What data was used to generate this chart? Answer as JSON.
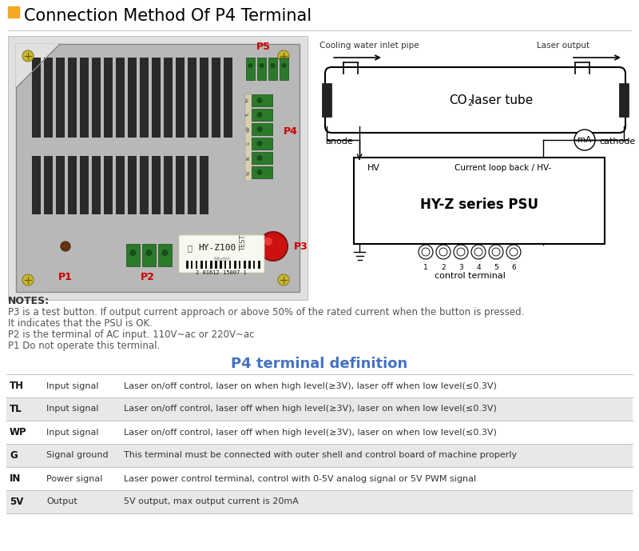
{
  "title": "Connection Method Of P4 Terminal",
  "title_square_color": "#F5A623",
  "title_color": "#000000",
  "title_fontsize": 15,
  "bg_color": "#ffffff",
  "notes_header": "NOTES:",
  "notes": [
    "P3 is a test button. If output current approach or above 50% of the rated current when the button is pressed.",
    "It indicates that the PSU is OK.",
    "P2 is the terminal of AC input. 110V~ac or 220V~ac",
    "P1 Do not operate this terminal."
  ],
  "notes_fontsize": 8.5,
  "table_title": "P4 terminal definition",
  "table_title_color": "#4472C4",
  "table_title_fontsize": 13,
  "table_rows": [
    {
      "pin": "TH",
      "type": "Input signal",
      "description": "Laser on/off control, laser on when high level(≥3V), laser off when low level(≤0.3V)",
      "highlighted": false
    },
    {
      "pin": "TL",
      "type": "Input signal",
      "description": "Laser on/off control, laser off when high level(≥3V), laser on when low level(≤0.3V)",
      "highlighted": true
    },
    {
      "pin": "WP",
      "type": "Input signal",
      "description": "Laser on/off control, laser off when high level(≥3V), laser on when low level(≤0.3V)",
      "highlighted": false
    },
    {
      "pin": "G",
      "type": "Signal ground",
      "description": "This terminal must be connected with outer shell and control board of machine properly",
      "highlighted": true
    },
    {
      "pin": "IN",
      "type": "Power signal",
      "description": "Laser power control terminal, control with 0-5V analog signal or 5V PWM signal",
      "highlighted": false
    },
    {
      "pin": "5V",
      "type": "Output",
      "description": "5V output, max output current is 20mA",
      "highlighted": true
    }
  ],
  "highlight_color": "#E8E8E8",
  "row_fontsize": 8.0,
  "laser_tube_label_part1": "CO",
  "laser_tube_label_part2": "laser tube",
  "psu_label": "HY-Z series PSU",
  "cooling_water_label": "Cooling water inlet pipe",
  "laser_output_label": "Laser output",
  "anode_label": "anode",
  "cathode_label": "cathode",
  "hv_label": "HV",
  "current_loop_label": "Current loop back / HV-",
  "control_terminal_label": "control terminal",
  "ma_label": "mA"
}
